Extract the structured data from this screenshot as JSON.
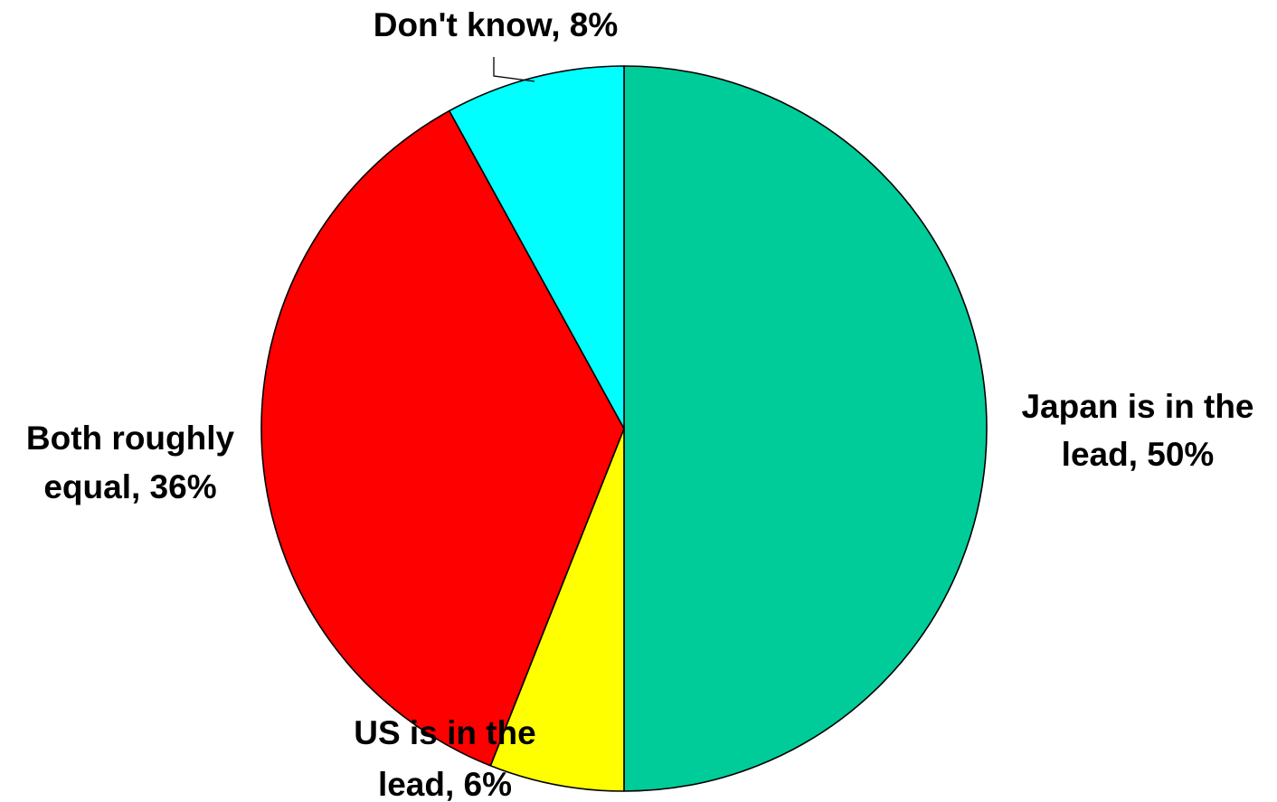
{
  "chart_data": {
    "type": "pie",
    "start_angle_deg": 0,
    "direction": "clockwise",
    "slices": [
      {
        "name": "Japan is in the lead",
        "value": 50,
        "label_lines": [
          "Japan is in the",
          "lead, 50%"
        ],
        "color": "#00CC99"
      },
      {
        "name": "US is in the lead",
        "value": 6,
        "label_lines": [
          "US is in the",
          "lead, 6%"
        ],
        "color": "#FFFF00"
      },
      {
        "name": "Both roughly equal",
        "value": 36,
        "label_lines": [
          "Both roughly",
          "equal, 36%"
        ],
        "color": "#FF0000"
      },
      {
        "name": "Don't know",
        "value": 8,
        "label_lines": [
          "Don't know, 8%"
        ],
        "color": "#00FFFF"
      }
    ],
    "outline_color": "#000000"
  }
}
